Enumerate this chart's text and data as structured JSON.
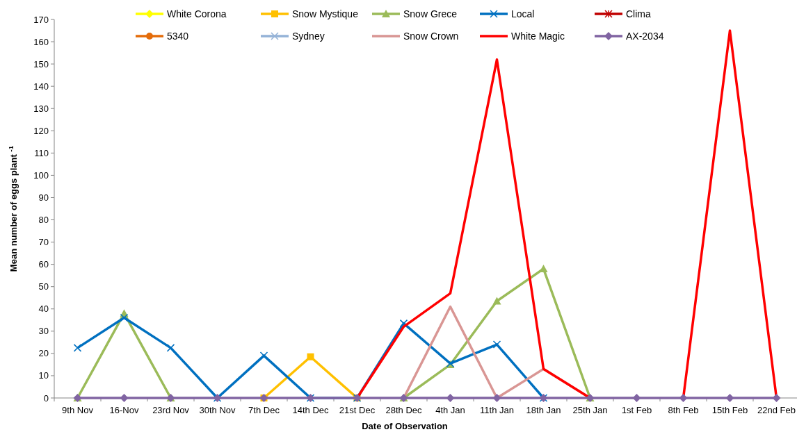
{
  "chart_data": {
    "type": "line",
    "xlabel": "Date of Observation",
    "ylabel": "Mean number of eggs  plant $^{-1}$",
    "categories": [
      "9th Nov",
      "16-Nov",
      "23rd Nov",
      "30th Nov",
      "7th Dec",
      "14th Dec",
      "21st Dec",
      "28th Dec",
      "4th Jan",
      "11th Jan",
      "18th Jan",
      "25th Jan",
      "1st Feb",
      "8th Feb",
      "15th Feb",
      "22nd Feb"
    ],
    "ylim": [
      0,
      170
    ],
    "yticks": [
      0,
      10,
      20,
      30,
      40,
      50,
      60,
      70,
      80,
      90,
      100,
      110,
      120,
      130,
      140,
      150,
      160,
      170
    ],
    "grid": false,
    "legend": "top",
    "series": [
      {
        "name": "White Corona",
        "color": "#ffff00",
        "marker": "diamond",
        "values": [
          null,
          null,
          null,
          null,
          null,
          null,
          null,
          null,
          null,
          null,
          null,
          null,
          null,
          null,
          null,
          null
        ]
      },
      {
        "name": "Snow Mystique",
        "color": "#ffc000",
        "marker": "square",
        "values": [
          null,
          null,
          null,
          null,
          0,
          18.5,
          0,
          null,
          null,
          null,
          null,
          null,
          null,
          null,
          null,
          null
        ]
      },
      {
        "name": "Snow Grece",
        "color": "#9bbb59",
        "marker": "triangle",
        "values": [
          0,
          38,
          0,
          null,
          null,
          null,
          null,
          0,
          15,
          43.5,
          58,
          0,
          null,
          null,
          null,
          null
        ]
      },
      {
        "name": "Local",
        "color": "#0070c0",
        "marker": "cross",
        "values": [
          22.5,
          36,
          22.5,
          0,
          19,
          0,
          0,
          33.5,
          15.5,
          24,
          0,
          null,
          null,
          null,
          null,
          null
        ]
      },
      {
        "name": "Clima",
        "color": "#c00000",
        "marker": "star",
        "values": [
          null,
          null,
          null,
          null,
          null,
          null,
          null,
          null,
          null,
          null,
          null,
          null,
          null,
          null,
          null,
          null
        ]
      },
      {
        "name": "5340",
        "color": "#e46c0a",
        "marker": "circle",
        "values": [
          null,
          null,
          null,
          null,
          null,
          null,
          null,
          null,
          null,
          null,
          null,
          null,
          null,
          null,
          null,
          null
        ]
      },
      {
        "name": "Sydney",
        "color": "#95b3d7",
        "marker": "cross",
        "values": [
          null,
          null,
          null,
          null,
          null,
          null,
          null,
          null,
          null,
          null,
          null,
          null,
          null,
          null,
          null,
          null
        ]
      },
      {
        "name": "Snow Crown",
        "color": "#d99694",
        "marker": "none",
        "values": [
          null,
          null,
          null,
          null,
          null,
          null,
          null,
          0,
          41,
          0,
          13,
          0,
          null,
          null,
          null,
          null
        ]
      },
      {
        "name": "White Magic",
        "color": "#ff0000",
        "marker": "none",
        "values": [
          null,
          null,
          null,
          null,
          null,
          null,
          0,
          32,
          47,
          152,
          13,
          0,
          null,
          0,
          165,
          0
        ]
      },
      {
        "name": "AX-2034",
        "color": "#8064a2",
        "marker": "diamond",
        "values": [
          0,
          0,
          0,
          0,
          0,
          0,
          0,
          0,
          0,
          0,
          0,
          0,
          0,
          0,
          0,
          0
        ]
      }
    ]
  }
}
